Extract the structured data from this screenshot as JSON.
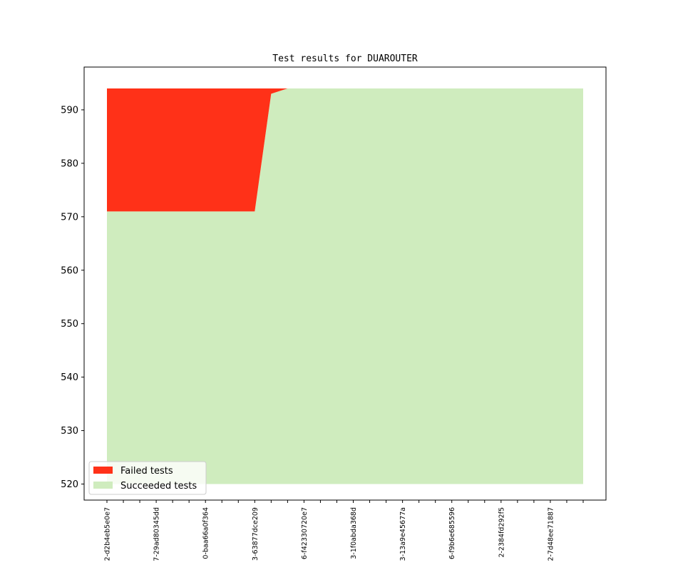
{
  "chart_data": {
    "type": "area",
    "title": "Test results for DUAROUTER",
    "xlabel": "",
    "ylabel": "",
    "ylim": [
      517,
      598
    ],
    "yticks": [
      520,
      530,
      540,
      550,
      560,
      570,
      580,
      590
    ],
    "baseline": 520,
    "total": 594,
    "x_label_ticks": [
      "2-d2b4eb5e0e7",
      "7-29ad80345dd",
      "0-baa66a0f364",
      "3-63877dce209",
      "6-f42330720e7",
      "3-1f0abda368d",
      "3-13a9e45677a",
      "6-f9b6e685596",
      "2-2384fd292f5",
      "2-7d48ee71887"
    ],
    "n_points": 30,
    "series": [
      {
        "name": "Failed tests",
        "color": "#ff3118",
        "values": [
          23,
          23,
          23,
          23,
          23,
          23,
          23,
          23,
          23,
          23,
          1,
          0,
          0,
          0,
          0,
          0,
          0,
          0,
          0,
          0,
          0,
          0,
          0,
          0,
          0,
          0,
          0,
          0,
          0,
          0
        ]
      },
      {
        "name": "Succeeded tests",
        "color": "#cfecbe",
        "values": [
          571,
          571,
          571,
          571,
          571,
          571,
          571,
          571,
          571,
          571,
          593,
          594,
          594,
          594,
          594,
          594,
          594,
          594,
          594,
          594,
          594,
          594,
          594,
          594,
          594,
          594,
          594,
          594,
          594,
          594
        ]
      }
    ],
    "legend": "lower-left",
    "grid": false
  }
}
